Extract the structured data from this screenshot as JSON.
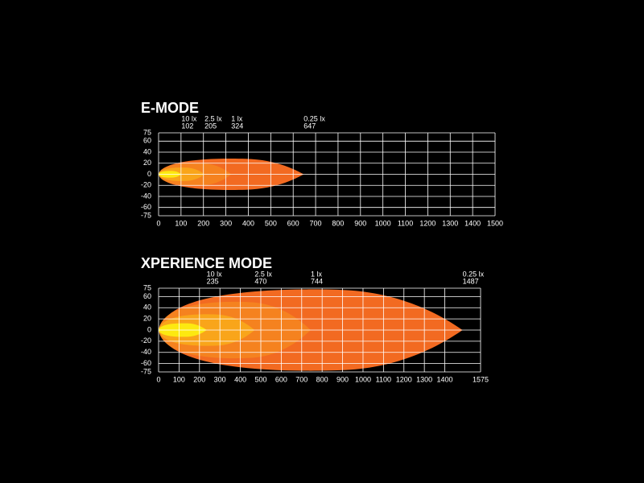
{
  "chart_data": [
    {
      "type": "beam",
      "title": "E-MODE",
      "xlim": [
        0,
        1500
      ],
      "xticks": [
        0,
        100,
        200,
        300,
        400,
        500,
        600,
        700,
        800,
        900,
        1000,
        1100,
        1200,
        1300,
        1400,
        1500
      ],
      "ylim": [
        -75,
        75
      ],
      "yticks": [
        75,
        60,
        40,
        20,
        0,
        -20,
        -40,
        -60,
        -75
      ],
      "grid": true,
      "contours": [
        {
          "name": "0.25 lx",
          "distance": 647,
          "half_width": 28,
          "color": "#f26a21"
        },
        {
          "name": "1 lx",
          "distance": 324,
          "half_width": 20,
          "color": "#f5821f"
        },
        {
          "name": "2.5 lx",
          "distance": 205,
          "half_width": 12,
          "color": "#f9a51a"
        },
        {
          "name": "10 lx",
          "distance": 102,
          "half_width": 6,
          "color": "#fde910"
        }
      ]
    },
    {
      "type": "beam",
      "title": "XPERIENCE MODE",
      "xlim": [
        0,
        1575
      ],
      "xticks": [
        0,
        100,
        200,
        300,
        400,
        500,
        600,
        700,
        800,
        900,
        1000,
        1100,
        1200,
        1300,
        1400,
        1575
      ],
      "ylim": [
        -75,
        75
      ],
      "yticks": [
        75,
        60,
        40,
        20,
        0,
        -20,
        -40,
        -60,
        -75
      ],
      "grid": true,
      "contours": [
        {
          "name": "0.25 lx",
          "distance": 1487,
          "half_width": 72,
          "color": "#f26a21"
        },
        {
          "name": "1 lx",
          "distance": 744,
          "half_width": 50,
          "color": "#f5821f"
        },
        {
          "name": "2.5 lx",
          "distance": 470,
          "half_width": 28,
          "color": "#f9a51a"
        },
        {
          "name": "10 lx",
          "distance": 235,
          "half_width": 12,
          "color": "#fde910"
        }
      ]
    }
  ]
}
